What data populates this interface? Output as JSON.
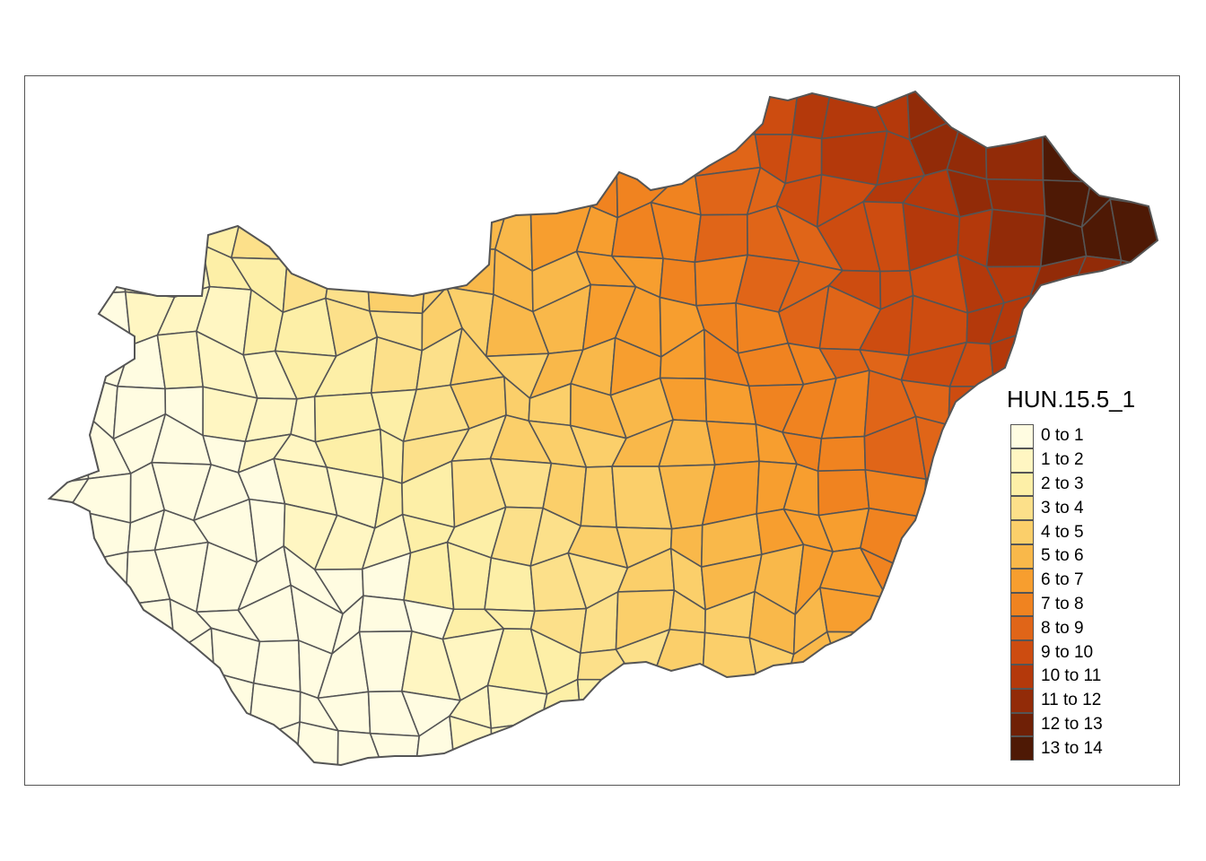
{
  "legend": {
    "title": "HUN.15.5_1",
    "classes": [
      {
        "label": "0 to 1",
        "color": "#FFFCE1"
      },
      {
        "label": "1 to 2",
        "color": "#FFF6C2"
      },
      {
        "label": "2 to 3",
        "color": "#FDEFA7"
      },
      {
        "label": "3 to 4",
        "color": "#FCE08A"
      },
      {
        "label": "4 to 5",
        "color": "#FBCF6A"
      },
      {
        "label": "5 to 6",
        "color": "#F9B84A"
      },
      {
        "label": "6 to 7",
        "color": "#F79E2F"
      },
      {
        "label": "7 to 8",
        "color": "#F08320"
      },
      {
        "label": "8 to 9",
        "color": "#E06518"
      },
      {
        "label": "9 to 10",
        "color": "#CD4C10"
      },
      {
        "label": "10 to 11",
        "color": "#B4390B"
      },
      {
        "label": "11 to 12",
        "color": "#922B08"
      },
      {
        "label": "12 to 13",
        "color": "#6F2006"
      },
      {
        "label": "13 to 14",
        "color": "#4E1905"
      }
    ]
  },
  "map": {
    "border_color": "#555555",
    "gradient_direction": "west-low to northeast-high"
  }
}
